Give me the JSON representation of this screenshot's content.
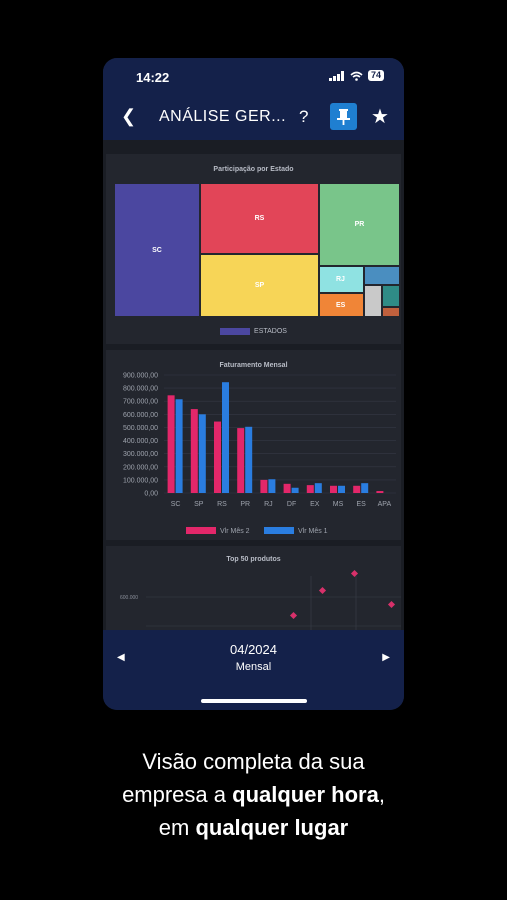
{
  "status": {
    "time": "14:22",
    "battery": "74"
  },
  "appbar": {
    "title": "ANÁLISE GER...",
    "help_label": "?"
  },
  "treemap": {
    "title": "Participação por Estado",
    "legend": "ESTADOS",
    "tiles": [
      {
        "label": "SC",
        "color": "#4b47a0"
      },
      {
        "label": "RS",
        "color": "#e24558"
      },
      {
        "label": "SP",
        "color": "#f7d557"
      },
      {
        "label": "PR",
        "color": "#79c58a"
      },
      {
        "label": "RJ",
        "color": "#8fe2e2"
      },
      {
        "label": "ES",
        "color": "#f08537"
      },
      {
        "label": "",
        "color": "#4a8ec0"
      },
      {
        "label": "",
        "color": "#c9c9c9"
      },
      {
        "label": "",
        "color": "#2f8b86"
      },
      {
        "label": "",
        "color": "#c0603d"
      }
    ]
  },
  "chart_data": {
    "type": "bar",
    "title": "Faturamento Mensal",
    "categories": [
      "SC",
      "SP",
      "RS",
      "PR",
      "RJ",
      "DF",
      "EX",
      "MS",
      "ES",
      "APA"
    ],
    "y_ticks": [
      "900.000,00",
      "800.000,00",
      "700.000,00",
      "600.000,00",
      "500.000,00",
      "400.000,00",
      "300.000,00",
      "200.000,00",
      "100.000,00",
      "0,00"
    ],
    "ylim": [
      0,
      900000
    ],
    "series": [
      {
        "name": "Vlr Mês 2",
        "color": "#e3276a",
        "values": [
          745000,
          640000,
          545000,
          495000,
          100000,
          70000,
          60000,
          55000,
          55000,
          15000
        ]
      },
      {
        "name": "Vlr Mês 1",
        "color": "#2a7de0",
        "values": [
          715000,
          600000,
          845000,
          505000,
          105000,
          40000,
          75000,
          55000,
          75000,
          0
        ]
      }
    ]
  },
  "top50": {
    "title": "Top 50 produtos",
    "tick_label": "600.000"
  },
  "footer": {
    "period": "04/2024",
    "type": "Mensal",
    "prev": "◀",
    "next": "▶"
  },
  "tagline": {
    "line1": "Visão completa da sua",
    "line2_a": "empresa a ",
    "line2_b": "qualquer hora",
    "line2_c": ",",
    "line3_a": "em ",
    "line3_b": "qualquer lugar"
  }
}
